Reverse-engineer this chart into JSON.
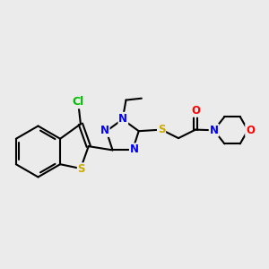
{
  "bg_color": "#ebebeb",
  "bond_color": "#000000",
  "bond_width": 1.5,
  "atom_colors": {
    "N": "#0000ff",
    "S_thio": "#ccaa00",
    "S_link": "#ccaa00",
    "Cl": "#00bb00",
    "O": "#ff0000",
    "C": "#000000"
  },
  "font_size": 8.5
}
